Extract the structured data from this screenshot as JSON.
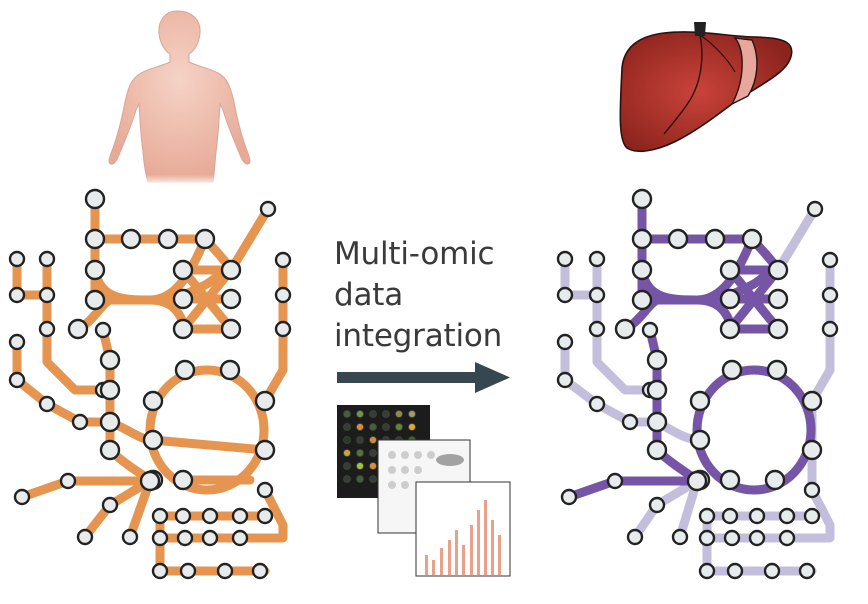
{
  "caption": {
    "line1": "Multi-omic",
    "line2": "data",
    "line3": "integration"
  },
  "icons": {
    "left_illustration": "human-body-icon",
    "right_illustration": "liver-organ-icon",
    "arrow": "right-arrow-icon",
    "data_panels": "data-heatmap-panels-icon"
  },
  "colors": {
    "generic_network": "#e5954f",
    "tissue_specific_network": "#7654a6",
    "inactive_network": "#c3bedb",
    "node_fill": "#e8ebeb",
    "node_stroke": "#222222",
    "arrow": "#37474f",
    "liver": "#9a2a22",
    "body": "#efc3b3"
  }
}
